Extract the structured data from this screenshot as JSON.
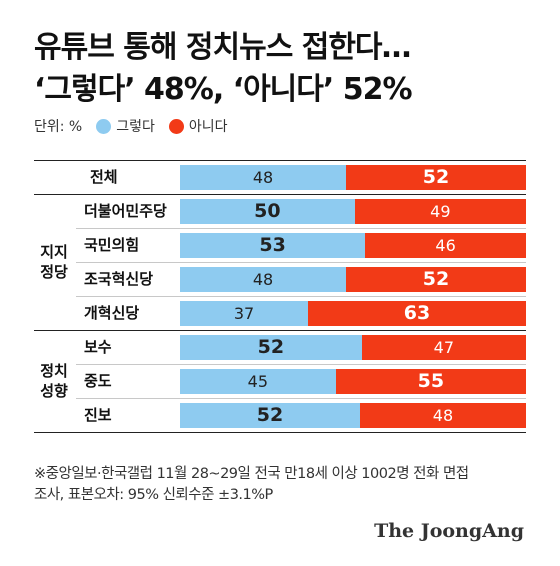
{
  "title_line1": "유튜브 통해 정치뉴스 접한다…",
  "title_line2": "‘그렇다’ 48%, ‘아니다’ 52%",
  "legend": {
    "unit": "단위: %",
    "yes_label": "그렇다",
    "no_label": "아니다"
  },
  "colors": {
    "yes": "#8ecbf0",
    "no": "#f23a17"
  },
  "chart_data": {
    "type": "bar",
    "stacked": true,
    "orientation": "horizontal",
    "xlim": [
      0,
      100
    ],
    "groups": [
      {
        "label": "",
        "rows": [
          {
            "label": "전체",
            "yes": 48,
            "no": 52
          }
        ]
      },
      {
        "label": "지지 정당",
        "rows": [
          {
            "label": "더불어민주당",
            "yes": 50,
            "no": 49
          },
          {
            "label": "국민의힘",
            "yes": 53,
            "no": 46
          },
          {
            "label": "조국혁신당",
            "yes": 48,
            "no": 52
          },
          {
            "label": "개혁신당",
            "yes": 37,
            "no": 63
          }
        ]
      },
      {
        "label": "정치 성향",
        "rows": [
          {
            "label": "보수",
            "yes": 52,
            "no": 47
          },
          {
            "label": "중도",
            "yes": 45,
            "no": 55
          },
          {
            "label": "진보",
            "yes": 52,
            "no": 48
          }
        ]
      }
    ]
  },
  "footnote_line1": "※중앙일보·한국갤럽 11월 28~29일 전국 만18세 이상 1002명 전화 면접",
  "footnote_line2": "조사, 표본오차: 95% 신뢰수준 ±3.1%P",
  "logo": "The JoongAng"
}
